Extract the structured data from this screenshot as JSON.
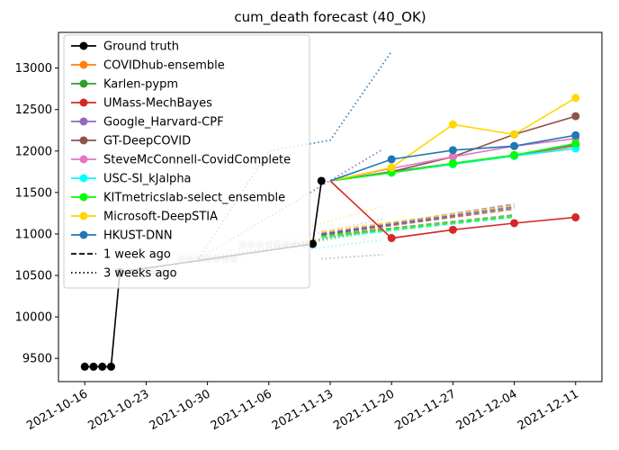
{
  "chart_data": {
    "type": "line",
    "title": "cum_death forecast (40_OK)",
    "xlabel": "",
    "ylabel": "",
    "x_ticks": [
      "2021-10-16",
      "2021-10-23",
      "2021-10-30",
      "2021-11-06",
      "2021-11-13",
      "2021-11-20",
      "2021-11-27",
      "2021-12-04",
      "2021-12-11"
    ],
    "y_ticks": [
      9500,
      10000,
      10500,
      11000,
      11500,
      12000,
      12500,
      13000
    ],
    "xlim": [
      "2021-10-13",
      "2021-12-14"
    ],
    "ylim": [
      9220,
      13430
    ],
    "grid": false,
    "legend_position": "top-left",
    "ground_truth": {
      "name": "Ground truth",
      "color": "#000000",
      "points": [
        [
          "2021-10-16",
          9400
        ],
        [
          "2021-10-17",
          9400
        ],
        [
          "2021-10-18",
          9400
        ],
        [
          "2021-10-19",
          9400
        ],
        [
          "2021-10-20",
          10540
        ],
        [
          "2021-11-11",
          10880
        ],
        [
          "2021-11-12",
          11640
        ]
      ],
      "faded_points": [
        [
          "2021-10-20",
          10540
        ],
        [
          "2021-10-21",
          10540
        ],
        [
          "2021-10-22",
          10540
        ],
        [
          "2021-10-23",
          10540
        ],
        [
          "2021-10-24",
          10540
        ],
        [
          "2021-10-25",
          10540
        ],
        [
          "2021-10-26",
          10540
        ],
        [
          "2021-10-27",
          10700
        ],
        [
          "2021-10-28",
          10700
        ],
        [
          "2021-10-29",
          10700
        ],
        [
          "2021-10-30",
          10700
        ],
        [
          "2021-10-31",
          10700
        ],
        [
          "2021-11-01",
          10700
        ],
        [
          "2021-11-02",
          10700
        ],
        [
          "2021-11-03",
          10875
        ],
        [
          "2021-11-04",
          10875
        ],
        [
          "2021-11-05",
          10875
        ],
        [
          "2021-11-06",
          10875
        ],
        [
          "2021-11-07",
          10875
        ],
        [
          "2021-11-08",
          10875
        ],
        [
          "2021-11-09",
          10875
        ],
        [
          "2021-11-10",
          10875
        ],
        [
          "2021-11-11",
          10880
        ]
      ]
    },
    "series": [
      {
        "name": "COVIDhub-ensemble",
        "color": "#ff7f0e",
        "values": [
          [
            "2021-11-13",
            11640
          ],
          [
            "2021-11-20",
            11740
          ],
          [
            "2021-11-27",
            11840
          ],
          [
            "2021-12-04",
            11940
          ],
          [
            "2021-12-11",
            12060
          ]
        ],
        "week1": [
          [
            "2021-11-12",
            10960
          ],
          [
            "2021-12-04",
            11210
          ]
        ],
        "week3": [
          [
            "2021-10-29",
            10680
          ],
          [
            "2021-11-19",
            11050
          ]
        ]
      },
      {
        "name": "Karlen-pypm",
        "color": "#2ca02c",
        "values": [
          [
            "2021-11-13",
            11640
          ],
          [
            "2021-11-20",
            11740
          ],
          [
            "2021-11-27",
            11850
          ],
          [
            "2021-12-04",
            11950
          ],
          [
            "2021-12-11",
            12080
          ]
        ],
        "week1": [
          [
            "2021-11-12",
            10980
          ],
          [
            "2021-12-04",
            11230
          ]
        ],
        "week3": [
          [
            "2021-10-29",
            10680
          ],
          [
            "2021-11-19",
            11060
          ]
        ]
      },
      {
        "name": "UMass-MechBayes",
        "color": "#d62728",
        "values": [
          [
            "2021-11-13",
            11640
          ],
          [
            "2021-11-20",
            10950
          ],
          [
            "2021-11-27",
            11050
          ],
          [
            "2021-12-04",
            11130
          ],
          [
            "2021-12-11",
            11200
          ]
        ],
        "week1": [
          [
            "2021-11-12",
            10990
          ],
          [
            "2021-12-04",
            11300
          ]
        ],
        "week3": [
          [
            "2021-10-29",
            10690
          ],
          [
            "2021-11-19",
            11070
          ]
        ]
      },
      {
        "name": "Google_Harvard-CPF",
        "color": "#9467bd",
        "values": [
          [
            "2021-11-13",
            11640
          ],
          [
            "2021-11-20",
            11750
          ],
          [
            "2021-11-27",
            11850
          ],
          [
            "2021-12-04",
            11950
          ],
          [
            "2021-12-11",
            12070
          ]
        ],
        "week1": [
          [
            "2021-11-12",
            11000
          ],
          [
            "2021-12-04",
            11360
          ]
        ],
        "week3": [
          [
            "2021-10-29",
            10700
          ],
          [
            "2021-11-19",
            12020
          ]
        ]
      },
      {
        "name": "GT-DeepCOVID",
        "color": "#8c564b",
        "values": [
          [
            "2021-11-13",
            11640
          ],
          [
            "2021-11-20",
            11750
          ],
          [
            "2021-11-27",
            11930
          ],
          [
            "2021-12-04",
            12200
          ],
          [
            "2021-12-11",
            12420
          ]
        ],
        "week1": [
          [
            "2021-11-12",
            10990
          ],
          [
            "2021-12-04",
            11330
          ]
        ],
        "week3": [
          [
            "2021-11-12",
            10700
          ],
          [
            "2021-11-19",
            10750
          ]
        ]
      },
      {
        "name": "SteveMcConnell-CovidComplete",
        "color": "#e377c2",
        "values": [
          [
            "2021-11-13",
            11640
          ],
          [
            "2021-11-20",
            11790
          ],
          [
            "2021-11-27",
            11930
          ],
          [
            "2021-12-04",
            12060
          ],
          [
            "2021-12-11",
            12150
          ]
        ],
        "week1": [
          [
            "2021-11-12",
            11010
          ],
          [
            "2021-12-04",
            11340
          ]
        ],
        "week3": [
          [
            "2021-10-29",
            10710
          ],
          [
            "2021-11-19",
            11180
          ]
        ]
      },
      {
        "name": "USC-SI_kJalpha",
        "color": "#00ffff",
        "values": [
          [
            "2021-11-13",
            11640
          ],
          [
            "2021-11-20",
            11740
          ],
          [
            "2021-11-27",
            11840
          ],
          [
            "2021-12-04",
            11940
          ],
          [
            "2021-12-11",
            12030
          ]
        ],
        "week1": [
          [
            "2021-11-12",
            10950
          ],
          [
            "2021-12-04",
            11200
          ]
        ],
        "week3": [
          [
            "2021-10-29",
            10650
          ],
          [
            "2021-11-19",
            10930
          ]
        ]
      },
      {
        "name": "KITmetricslab-select_ensemble",
        "color": "#00ff00",
        "values": [
          [
            "2021-11-13",
            11640
          ],
          [
            "2021-11-20",
            11740
          ],
          [
            "2021-11-27",
            11850
          ],
          [
            "2021-12-04",
            11950
          ],
          [
            "2021-12-11",
            12090
          ]
        ],
        "week1": [
          [
            "2021-11-12",
            10970
          ],
          [
            "2021-12-04",
            11210
          ]
        ],
        "week3": [
          [
            "2021-10-29",
            10670
          ],
          [
            "2021-11-19",
            11040
          ]
        ]
      },
      {
        "name": "Microsoft-DeepSTIA",
        "color": "#ffd700",
        "values": [
          [
            "2021-11-13",
            11640
          ],
          [
            "2021-11-20",
            11800
          ],
          [
            "2021-11-27",
            12320
          ],
          [
            "2021-12-04",
            12200
          ],
          [
            "2021-12-11",
            12640
          ]
        ],
        "week1": [
          [
            "2021-11-12",
            11030
          ],
          [
            "2021-12-04",
            11340
          ]
        ],
        "week3": [
          [
            "2021-10-29",
            10720
          ],
          [
            "2021-11-19",
            11330
          ]
        ]
      },
      {
        "name": "HKUST-DNN",
        "color": "#1f77b4",
        "values": [
          [
            "2021-11-13",
            11640
          ],
          [
            "2021-11-20",
            11900
          ],
          [
            "2021-11-27",
            12010
          ],
          [
            "2021-12-04",
            12060
          ],
          [
            "2021-12-11",
            12190
          ]
        ],
        "week1": [
          [
            "2021-11-12",
            11000
          ],
          [
            "2021-12-04",
            11320
          ]
        ],
        "week3": [
          [
            "2021-10-29",
            10700
          ],
          [
            "2021-11-06",
            12000
          ],
          [
            "2021-11-13",
            12130
          ],
          [
            "2021-11-20",
            13200
          ]
        ]
      }
    ],
    "legend": [
      {
        "label": "Ground truth",
        "color": "#000000",
        "style": "solid-marker"
      },
      {
        "label": "COVIDhub-ensemble",
        "color": "#ff7f0e",
        "style": "solid-marker"
      },
      {
        "label": "Karlen-pypm",
        "color": "#2ca02c",
        "style": "solid-marker"
      },
      {
        "label": "UMass-MechBayes",
        "color": "#d62728",
        "style": "solid-marker"
      },
      {
        "label": "Google_Harvard-CPF",
        "color": "#9467bd",
        "style": "solid-marker"
      },
      {
        "label": "GT-DeepCOVID",
        "color": "#8c564b",
        "style": "solid-marker"
      },
      {
        "label": "SteveMcConnell-CovidComplete",
        "color": "#e377c2",
        "style": "solid-marker"
      },
      {
        "label": "USC-SI_kJalpha",
        "color": "#00ffff",
        "style": "solid-marker"
      },
      {
        "label": "KITmetricslab-select_ensemble",
        "color": "#00ff00",
        "style": "solid-marker"
      },
      {
        "label": "Microsoft-DeepSTIA",
        "color": "#ffd700",
        "style": "solid-marker"
      },
      {
        "label": "HKUST-DNN",
        "color": "#1f77b4",
        "style": "solid-marker"
      },
      {
        "label": "1 week ago",
        "color": "#000000",
        "style": "dashed"
      },
      {
        "label": "3 weeks ago",
        "color": "#000000",
        "style": "dotted"
      }
    ]
  }
}
